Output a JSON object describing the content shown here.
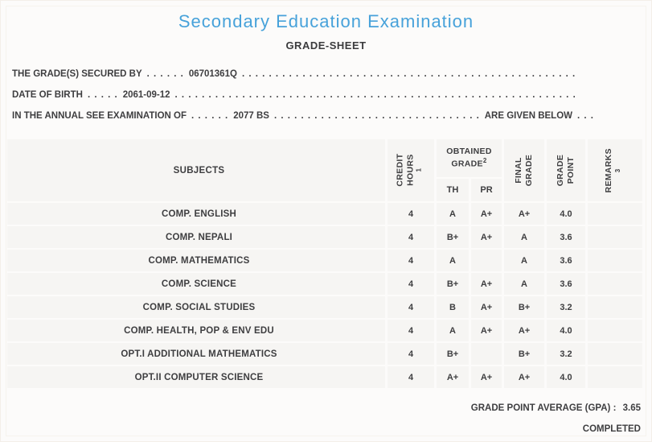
{
  "page": {
    "title": "Secondary Education Examination",
    "subtitle": "GRADE-SHEET"
  },
  "colors": {
    "title_blue": "#47a2da",
    "body_text": "#3e3e40",
    "table_cell_bg": "#f6f5f3",
    "page_bg": "#fcfbfa"
  },
  "statements": {
    "secured_by": {
      "label": "THE GRADE(S) SECURED BY",
      "dots": ". . . . . .",
      "value": "06701361Q"
    },
    "date_of_birth": {
      "label": "DATE OF BIRTH",
      "dots": ". . . . .",
      "value": "2061-09-12"
    },
    "examination": {
      "label": "IN THE ANNUAL SEE EXAMINATION OF",
      "dots": ". . . . . .",
      "value": "2077 BS",
      "suffix": "ARE GIVEN BELOW",
      "tail_dots": ". . ."
    }
  },
  "leader_dots": ". . . . . . . . . . . . . . . . . . . . . . . . . . . . . . . . . . . . . . . . . . . . . . . . . . . . . . . . . . . . . . . . . . . . . . . . . . . . . . . .",
  "table": {
    "columns": {
      "subjects": "SUBJECTS",
      "credit_hours": {
        "line1": "CREDIT",
        "line2": "HOURS",
        "sup": "1"
      },
      "obtained_grade": {
        "line1": "OBTAINED",
        "line2": "GRADE",
        "sup": "2",
        "sub_th": "TH",
        "sub_pr": "PR"
      },
      "final_grade": {
        "line1": "FINAL",
        "line2": "GRADE"
      },
      "grade_point": {
        "line1": "GRADE",
        "line2": "POINT"
      },
      "remarks": {
        "label": "REMARKS",
        "sup": "3"
      }
    },
    "rows": [
      {
        "subject": "COMP. ENGLISH",
        "credit_hours": "4",
        "th": "A",
        "pr": "A+",
        "final_grade": "A+",
        "grade_point": "4.0",
        "remarks": ""
      },
      {
        "subject": "COMP. NEPALI",
        "credit_hours": "4",
        "th": "B+",
        "pr": "A+",
        "final_grade": "A",
        "grade_point": "3.6",
        "remarks": ""
      },
      {
        "subject": "COMP. MATHEMATICS",
        "credit_hours": "4",
        "th": "A",
        "pr": "",
        "final_grade": "A",
        "grade_point": "3.6",
        "remarks": ""
      },
      {
        "subject": "COMP. SCIENCE",
        "credit_hours": "4",
        "th": "B+",
        "pr": "A+",
        "final_grade": "A",
        "grade_point": "3.6",
        "remarks": ""
      },
      {
        "subject": "COMP. SOCIAL STUDIES",
        "credit_hours": "4",
        "th": "B",
        "pr": "A+",
        "final_grade": "B+",
        "grade_point": "3.2",
        "remarks": ""
      },
      {
        "subject": "COMP. HEALTH, POP & ENV EDU",
        "credit_hours": "4",
        "th": "A",
        "pr": "A+",
        "final_grade": "A+",
        "grade_point": "4.0",
        "remarks": ""
      },
      {
        "subject": "OPT.I ADDITIONAL MATHEMATICS",
        "credit_hours": "4",
        "th": "B+",
        "pr": "",
        "final_grade": "B+",
        "grade_point": "3.2",
        "remarks": ""
      },
      {
        "subject": "OPT.II COMPUTER SCIENCE",
        "credit_hours": "4",
        "th": "A+",
        "pr": "A+",
        "final_grade": "A+",
        "grade_point": "4.0",
        "remarks": ""
      }
    ]
  },
  "footer": {
    "gpa_label": "GRADE POINT AVERAGE (GPA) :",
    "gpa_value": "3.65",
    "status": "COMPLETED"
  }
}
